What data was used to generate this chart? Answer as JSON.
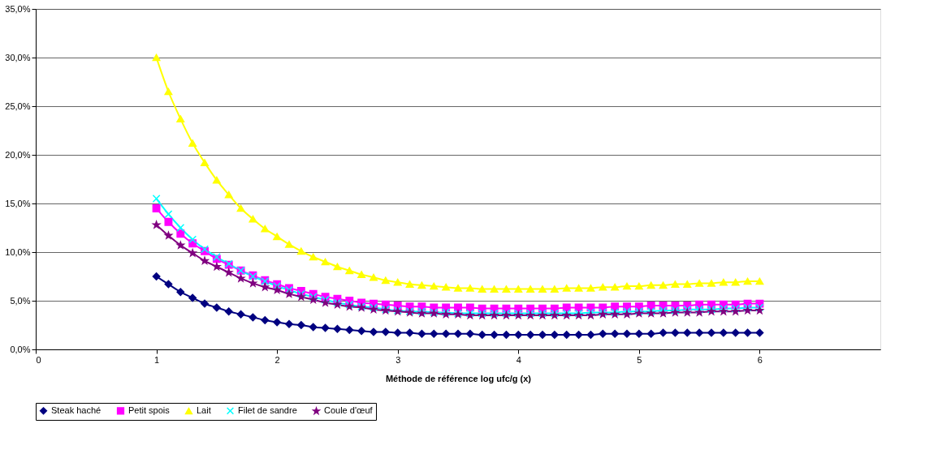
{
  "chart_data": {
    "type": "line",
    "xlabel": "Méthode de référence log ufc/g (x)",
    "x": [
      1,
      1.1,
      1.2,
      1.3,
      1.4,
      1.5,
      1.6,
      1.7,
      1.8,
      1.9,
      2,
      2.1,
      2.2,
      2.3,
      2.4,
      2.5,
      2.6,
      2.7,
      2.8,
      2.9,
      3,
      3.1,
      3.2,
      3.3,
      3.4,
      3.5,
      3.6,
      3.7,
      3.8,
      3.9,
      4,
      4.1,
      4.2,
      4.3,
      4.4,
      4.5,
      4.6,
      4.7,
      4.8,
      4.9,
      5,
      5.1,
      5.2,
      5.3,
      5.4,
      5.5,
      5.6,
      5.7,
      5.8,
      5.9,
      6
    ],
    "series": [
      {
        "name": "Steak haché",
        "color": "#000080",
        "marker": "diamond",
        "values": [
          7.5,
          6.7,
          5.9,
          5.3,
          4.7,
          4.3,
          3.9,
          3.6,
          3.3,
          3.0,
          2.8,
          2.6,
          2.5,
          2.3,
          2.2,
          2.1,
          2.0,
          1.9,
          1.8,
          1.8,
          1.7,
          1.7,
          1.6,
          1.6,
          1.6,
          1.6,
          1.6,
          1.5,
          1.5,
          1.5,
          1.5,
          1.5,
          1.5,
          1.5,
          1.5,
          1.5,
          1.5,
          1.6,
          1.6,
          1.6,
          1.6,
          1.6,
          1.7,
          1.7,
          1.7,
          1.7,
          1.7,
          1.7,
          1.7,
          1.7,
          1.7
        ]
      },
      {
        "name": "Petit spois",
        "color": "#ff00ff",
        "marker": "square",
        "values": [
          14.5,
          13.1,
          11.9,
          10.9,
          10.1,
          9.3,
          8.7,
          8.1,
          7.6,
          7.1,
          6.7,
          6.3,
          6.0,
          5.7,
          5.4,
          5.2,
          5.0,
          4.8,
          4.7,
          4.6,
          4.5,
          4.4,
          4.4,
          4.3,
          4.3,
          4.3,
          4.3,
          4.2,
          4.2,
          4.2,
          4.2,
          4.2,
          4.2,
          4.2,
          4.3,
          4.3,
          4.3,
          4.3,
          4.4,
          4.4,
          4.4,
          4.5,
          4.5,
          4.5,
          4.5,
          4.6,
          4.6,
          4.6,
          4.6,
          4.7,
          4.7
        ]
      },
      {
        "name": "Lait",
        "color": "#ffff00",
        "marker": "triangle",
        "values": [
          30.0,
          26.5,
          23.7,
          21.2,
          19.2,
          17.4,
          15.9,
          14.5,
          13.4,
          12.4,
          11.6,
          10.8,
          10.1,
          9.5,
          9.0,
          8.5,
          8.1,
          7.7,
          7.4,
          7.1,
          6.9,
          6.7,
          6.6,
          6.5,
          6.4,
          6.3,
          6.3,
          6.2,
          6.2,
          6.2,
          6.2,
          6.2,
          6.2,
          6.2,
          6.3,
          6.3,
          6.3,
          6.4,
          6.4,
          6.5,
          6.5,
          6.6,
          6.6,
          6.7,
          6.7,
          6.8,
          6.8,
          6.9,
          6.9,
          7.0,
          7.0
        ]
      },
      {
        "name": "Filet de sandre",
        "color": "#00ffff",
        "marker": "cross",
        "values": [
          15.5,
          13.9,
          12.5,
          11.3,
          10.3,
          9.5,
          8.8,
          8.1,
          7.5,
          7.0,
          6.5,
          6.1,
          5.7,
          5.4,
          5.1,
          4.8,
          4.6,
          4.4,
          4.3,
          4.1,
          4.0,
          3.9,
          3.9,
          3.8,
          3.8,
          3.7,
          3.7,
          3.7,
          3.7,
          3.7,
          3.7,
          3.7,
          3.7,
          3.7,
          3.7,
          3.7,
          3.8,
          3.8,
          3.8,
          3.9,
          3.9,
          3.9,
          4.0,
          4.0,
          4.1,
          4.1,
          4.1,
          4.2,
          4.2,
          4.3,
          4.3
        ]
      },
      {
        "name": "Coule d'œuf",
        "color": "#800080",
        "marker": "star",
        "values": [
          12.8,
          11.7,
          10.7,
          9.9,
          9.1,
          8.5,
          7.9,
          7.3,
          6.8,
          6.4,
          6.1,
          5.7,
          5.4,
          5.1,
          4.8,
          4.6,
          4.4,
          4.3,
          4.1,
          4.0,
          3.9,
          3.8,
          3.7,
          3.7,
          3.6,
          3.6,
          3.5,
          3.5,
          3.5,
          3.5,
          3.5,
          3.5,
          3.5,
          3.5,
          3.5,
          3.5,
          3.5,
          3.6,
          3.6,
          3.6,
          3.7,
          3.7,
          3.7,
          3.8,
          3.8,
          3.8,
          3.9,
          3.9,
          3.9,
          4.0,
          4.0
        ]
      }
    ],
    "xlim": [
      0,
      7
    ],
    "xticks": [
      0,
      1,
      2,
      3,
      4,
      5,
      6
    ],
    "ylim": [
      0,
      35
    ],
    "yticks": [
      {
        "value": 0,
        "label": "0,0%"
      },
      {
        "value": 5,
        "label": "5,0%"
      },
      {
        "value": 10,
        "label": "10,0%"
      },
      {
        "value": 15,
        "label": "15,0%"
      },
      {
        "value": 20,
        "label": "20,0%"
      },
      {
        "value": 25,
        "label": "25,0%"
      },
      {
        "value": 30,
        "label": "30,0%"
      },
      {
        "value": 35,
        "label": "35,0%"
      }
    ],
    "grid": "y",
    "legend": "bottom",
    "line_style": "solid"
  }
}
